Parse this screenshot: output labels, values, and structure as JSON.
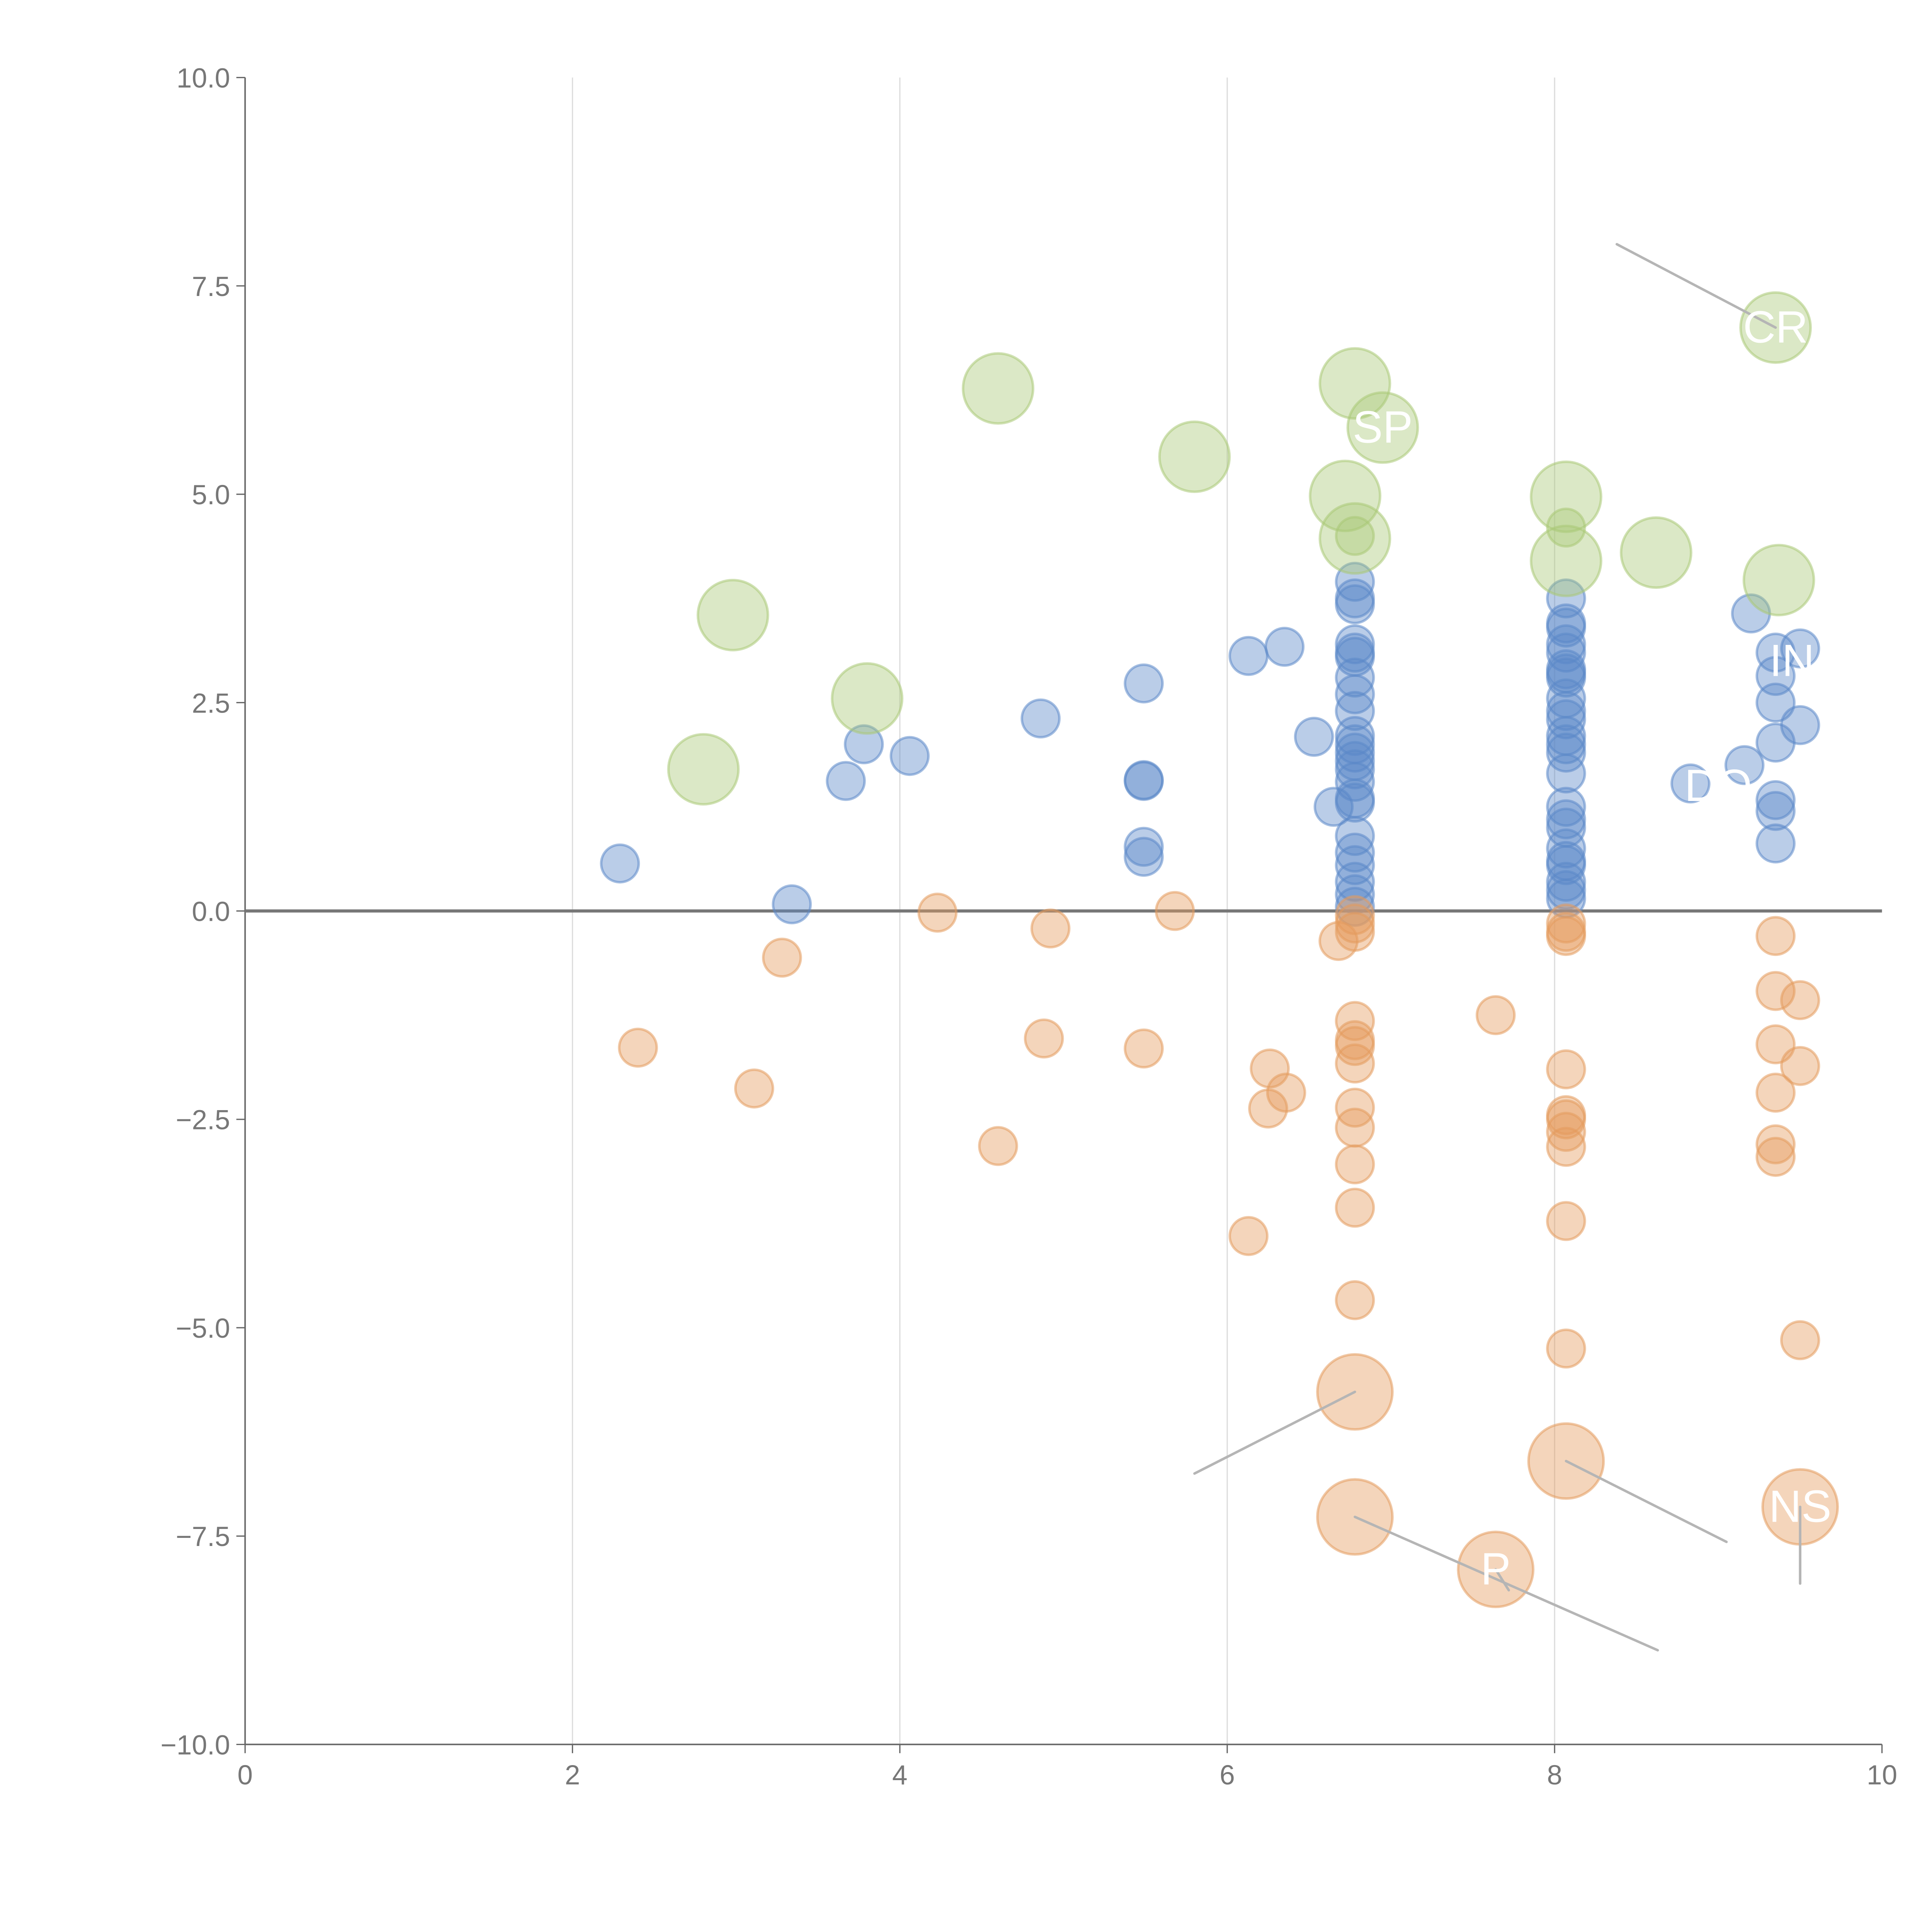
{
  "chart_data": {
    "type": "scatter",
    "title": "",
    "xlabel": "",
    "ylabel": "",
    "xlim": [
      0,
      10
    ],
    "ylim": [
      -10,
      10
    ],
    "xticks": [
      0,
      2,
      4,
      6,
      8,
      10
    ],
    "xtick_labels": [
      "0",
      "2",
      "4",
      "6",
      "8",
      "10"
    ],
    "yticks": [
      -10,
      -7.5,
      -5,
      -2.5,
      0,
      2.5,
      5,
      7.5,
      10
    ],
    "ytick_labels": [
      "−10.0",
      "−7.5",
      "−5.0",
      "−2.5",
      "0.0",
      "2.5",
      "5.0",
      "7.5",
      "10.0"
    ],
    "grid": "vertical",
    "reference_line_y": 0,
    "colors": {
      "blue": "#5b88c8",
      "orange": "#e49a5c",
      "green": "#a9c977",
      "axis": "#666666",
      "grid": "#dddddd",
      "leader": "#b5b5b5"
    },
    "series": [
      {
        "name": "blue",
        "size": "small",
        "points": [
          [
            2.29,
            0.57
          ],
          [
            3.34,
            0.08
          ],
          [
            3.67,
            1.56
          ],
          [
            3.78,
            2.0
          ],
          [
            4.06,
            1.86
          ],
          [
            4.86,
            2.31
          ],
          [
            5.49,
            2.73
          ],
          [
            5.49,
            1.57
          ],
          [
            5.49,
            1.56
          ],
          [
            5.49,
            0.77
          ],
          [
            5.49,
            0.65
          ],
          [
            6.13,
            3.06
          ],
          [
            6.35,
            3.17
          ],
          [
            6.53,
            2.09
          ],
          [
            6.65,
            1.25
          ],
          [
            6.78,
            3.95
          ],
          [
            6.78,
            3.75
          ],
          [
            6.78,
            3.68
          ],
          [
            6.78,
            3.2
          ],
          [
            6.78,
            3.1
          ],
          [
            6.78,
            3.05
          ],
          [
            6.78,
            2.8
          ],
          [
            6.78,
            2.6
          ],
          [
            6.78,
            2.4
          ],
          [
            6.78,
            2.1
          ],
          [
            6.78,
            2.0
          ],
          [
            6.78,
            1.9
          ],
          [
            6.78,
            1.8
          ],
          [
            6.78,
            1.7
          ],
          [
            6.78,
            1.55
          ],
          [
            6.78,
            1.35
          ],
          [
            6.78,
            1.3
          ],
          [
            6.78,
            0.9
          ],
          [
            6.78,
            0.7
          ],
          [
            6.78,
            0.55
          ],
          [
            6.78,
            0.35
          ],
          [
            6.78,
            0.2
          ],
          [
            6.78,
            0.05
          ],
          [
            8.07,
            3.75
          ],
          [
            8.07,
            3.45
          ],
          [
            8.07,
            3.4
          ],
          [
            8.07,
            3.2
          ],
          [
            8.07,
            3.1
          ],
          [
            8.07,
            2.9
          ],
          [
            8.07,
            2.85
          ],
          [
            8.07,
            2.8
          ],
          [
            8.07,
            2.55
          ],
          [
            8.07,
            2.4
          ],
          [
            8.07,
            2.3
          ],
          [
            8.07,
            2.1
          ],
          [
            8.07,
            2.0
          ],
          [
            8.07,
            1.9
          ],
          [
            8.07,
            1.65
          ],
          [
            8.07,
            1.25
          ],
          [
            8.07,
            1.1
          ],
          [
            8.07,
            1.0
          ],
          [
            8.07,
            0.75
          ],
          [
            8.07,
            0.6
          ],
          [
            8.07,
            0.55
          ],
          [
            8.07,
            0.35
          ],
          [
            8.07,
            0.25
          ],
          [
            8.07,
            0.15
          ],
          [
            9.2,
            3.57
          ],
          [
            9.5,
            3.15
          ],
          [
            9.35,
            3.1
          ],
          [
            9.35,
            2.82
          ],
          [
            9.35,
            2.5
          ],
          [
            9.5,
            2.23
          ],
          [
            9.35,
            2.02
          ],
          [
            9.16,
            1.75
          ],
          [
            8.83,
            1.53
          ],
          [
            9.35,
            1.33
          ],
          [
            9.35,
            1.2
          ],
          [
            9.35,
            0.81
          ]
        ]
      },
      {
        "name": "orange",
        "size": "small",
        "points": [
          [
            2.4,
            -1.64
          ],
          [
            3.11,
            -2.13
          ],
          [
            3.28,
            -0.56
          ],
          [
            4.23,
            -0.02
          ],
          [
            4.6,
            -2.82
          ],
          [
            4.88,
            -1.53
          ],
          [
            4.92,
            -0.21
          ],
          [
            5.49,
            -1.65
          ],
          [
            5.68,
            0.0
          ],
          [
            6.13,
            -3.9
          ],
          [
            6.25,
            -2.37
          ],
          [
            6.26,
            -1.89
          ],
          [
            6.36,
            -2.18
          ],
          [
            6.68,
            -0.36
          ],
          [
            6.78,
            -0.05
          ],
          [
            6.78,
            -0.15
          ],
          [
            6.78,
            -0.25
          ],
          [
            6.78,
            -1.32
          ],
          [
            6.78,
            -1.55
          ],
          [
            6.78,
            -1.62
          ],
          [
            6.78,
            -1.83
          ],
          [
            6.78,
            -2.36
          ],
          [
            6.78,
            -2.6
          ],
          [
            6.78,
            -3.04
          ],
          [
            6.78,
            -3.56
          ],
          [
            6.78,
            -4.67
          ],
          [
            7.64,
            -1.25
          ],
          [
            8.07,
            -0.15
          ],
          [
            8.07,
            -0.25
          ],
          [
            8.07,
            -0.3
          ],
          [
            8.07,
            -1.9
          ],
          [
            8.07,
            -2.45
          ],
          [
            8.07,
            -2.5
          ],
          [
            8.07,
            -2.65
          ],
          [
            8.07,
            -2.83
          ],
          [
            8.07,
            -3.72
          ],
          [
            8.07,
            -5.25
          ],
          [
            9.35,
            -0.3
          ],
          [
            9.35,
            -0.96
          ],
          [
            9.35,
            -1.6
          ],
          [
            9.35,
            -2.18
          ],
          [
            9.35,
            -2.8
          ],
          [
            9.35,
            -2.95
          ],
          [
            9.5,
            -1.07
          ],
          [
            9.5,
            -1.86
          ],
          [
            9.5,
            -5.15
          ]
        ]
      },
      {
        "name": "orange-large",
        "size": "large",
        "color": "orange",
        "points": [
          [
            6.78,
            -5.77
          ],
          [
            6.78,
            -7.27
          ],
          [
            7.64,
            -7.9
          ],
          [
            8.07,
            -6.6
          ],
          [
            9.5,
            -7.15
          ]
        ]
      },
      {
        "name": "green-small",
        "size": "small",
        "color": "green",
        "points": [
          [
            8.07,
            4.6
          ],
          [
            6.78,
            4.5
          ]
        ]
      },
      {
        "name": "green",
        "size": "large",
        "points": [
          [
            2.8,
            1.7
          ],
          [
            2.98,
            3.55
          ],
          [
            3.8,
            2.55
          ],
          [
            4.6,
            6.27
          ],
          [
            5.8,
            5.45
          ],
          [
            6.78,
            6.33
          ],
          [
            6.95,
            5.8
          ],
          [
            6.72,
            4.98
          ],
          [
            6.78,
            4.47
          ],
          [
            8.07,
            4.97
          ],
          [
            8.07,
            4.2
          ],
          [
            8.62,
            4.3
          ],
          [
            9.35,
            7.0
          ],
          [
            9.37,
            3.97
          ]
        ]
      }
    ],
    "annotations": [
      {
        "text": "CR",
        "x": 9.35,
        "y": 7.0,
        "lx": 8.38,
        "ly": 8.0
      },
      {
        "text": "SP",
        "x": 6.95,
        "y": 5.8,
        "lx": 6.95,
        "ly": 5.8
      },
      {
        "text": "IN",
        "x": 9.45,
        "y": 3.0,
        "lx": 9.45,
        "ly": 3.0
      },
      {
        "text": "DO",
        "x": 9.0,
        "y": 1.5,
        "lx": 9.0,
        "ly": 1.5
      },
      {
        "text": "NS",
        "x": 9.5,
        "y": -7.15,
        "lx": 9.5,
        "ly": -8.07
      },
      {
        "text": "P",
        "x": 7.64,
        "y": -7.9,
        "lx": 7.72,
        "ly": -8.15
      },
      {
        "text": "",
        "x": 6.78,
        "y": -5.77,
        "lx": 5.8,
        "ly": -6.75
      },
      {
        "text": "",
        "x": 6.78,
        "y": -7.27,
        "lx": 8.63,
        "ly": -8.87
      },
      {
        "text": "",
        "x": 8.07,
        "y": -6.6,
        "lx": 9.05,
        "ly": -7.57
      }
    ]
  }
}
